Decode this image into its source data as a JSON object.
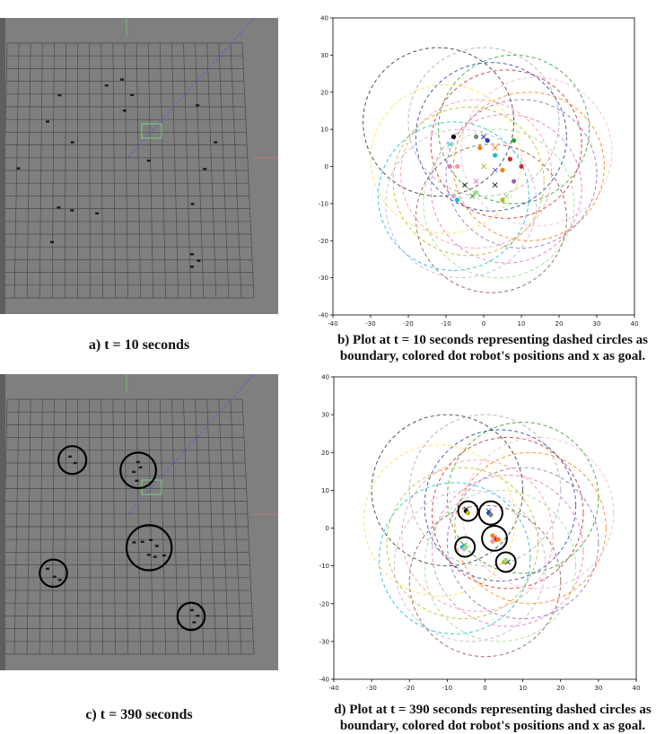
{
  "captions": {
    "a": "a) t = 10 seconds",
    "b_line1": "b) Plot at t = 10 seconds representing dashed circles as",
    "b_line2": "boundary, colored dot robot's positions and x as goal.",
    "c": "c) t = 390 seconds",
    "d_line1": "d) Plot at t = 390 seconds representing dashed circles as",
    "d_line2": "boundary, colored dot robot's positions and x as goal."
  },
  "colors": {
    "sim_background": "#7f7f7f",
    "grid_line": "#4a4a4a",
    "diagonal_line": "#5b5bd6",
    "highlight_box": "#7fd07f"
  },
  "chart_data": [
    {
      "id": "b",
      "type": "scatter",
      "title": "",
      "xlabel": "",
      "ylabel": "",
      "xlim": [
        -40,
        40
      ],
      "ylim": [
        -40,
        40
      ],
      "xticks": [
        -40,
        -30,
        -20,
        -10,
        0,
        10,
        20,
        30,
        40
      ],
      "yticks": [
        -40,
        -30,
        -20,
        -10,
        0,
        10,
        20,
        30,
        40
      ],
      "grid": false,
      "boundary_circles": [
        {
          "cx": -12,
          "cy": 12,
          "r": 20,
          "color": "#333333"
        },
        {
          "cx": 8,
          "cy": 10,
          "r": 20,
          "color": "#2ca02c"
        },
        {
          "cx": 6,
          "cy": 6,
          "r": 20,
          "color": "#d62728"
        },
        {
          "cx": 2,
          "cy": 8,
          "r": 20,
          "color": "#1f3fb4"
        },
        {
          "cx": 0,
          "cy": 12,
          "r": 20,
          "color": "#aaaaaa"
        },
        {
          "cx": -8,
          "cy": -8,
          "r": 20,
          "color": "#17becf"
        },
        {
          "cx": 6,
          "cy": -6,
          "r": 20,
          "color": "#e377c2"
        },
        {
          "cx": -4,
          "cy": -4,
          "r": 20,
          "color": "#bcbd22"
        },
        {
          "cx": 12,
          "cy": 0,
          "r": 20,
          "color": "#ff7f0e"
        },
        {
          "cx": 10,
          "cy": -2,
          "r": 20,
          "color": "#9467bd"
        },
        {
          "cx": -10,
          "cy": 2,
          "r": 20,
          "color": "#ffdd55"
        },
        {
          "cx": 4,
          "cy": -10,
          "r": 20,
          "color": "#98df8a"
        },
        {
          "cx": -2,
          "cy": -2,
          "r": 20,
          "color": "#ff9896"
        },
        {
          "cx": -6,
          "cy": -10,
          "r": 20,
          "color": "#c5b0d5"
        },
        {
          "cx": 14,
          "cy": 4,
          "r": 20,
          "color": "#f7b6d2"
        },
        {
          "cx": 2,
          "cy": -14,
          "r": 20,
          "color": "#8c564b"
        }
      ],
      "robots": [
        {
          "x": -8,
          "y": 8,
          "color": "#000000"
        },
        {
          "x": -2,
          "y": 8,
          "color": "#7f7f7f"
        },
        {
          "x": 1,
          "y": 7,
          "color": "#1f3fb4"
        },
        {
          "x": 8,
          "y": 7,
          "color": "#2ca02c"
        },
        {
          "x": -1,
          "y": 5,
          "color": "#ff7f0e"
        },
        {
          "x": 3,
          "y": 3,
          "color": "#17becf"
        },
        {
          "x": 7,
          "y": 2,
          "color": "#d62728"
        },
        {
          "x": 10,
          "y": 0,
          "color": "#d62728"
        },
        {
          "x": -9,
          "y": 0,
          "color": "#e377c2"
        },
        {
          "x": -7,
          "y": 0,
          "color": "#ff9896"
        },
        {
          "x": 5,
          "y": -1,
          "color": "#ff7f0e"
        },
        {
          "x": 8,
          "y": -4,
          "color": "#9467bd"
        },
        {
          "x": -8,
          "y": -8,
          "color": "#c5b0d5"
        },
        {
          "x": -7,
          "y": -9,
          "color": "#17becf"
        },
        {
          "x": 5,
          "y": -9,
          "color": "#bcbd22"
        },
        {
          "x": -2,
          "y": -7,
          "color": "#98df8a"
        }
      ],
      "goals": [
        {
          "x": -9,
          "y": 6,
          "color": "#17becf"
        },
        {
          "x": 0,
          "y": 8,
          "color": "#1f3fb4"
        },
        {
          "x": 3,
          "y": 5,
          "color": "#ff7f0e"
        },
        {
          "x": 0,
          "y": 0,
          "color": "#bcbd22"
        },
        {
          "x": 3,
          "y": -1,
          "color": "#9467bd"
        },
        {
          "x": -5,
          "y": -5,
          "color": "#333333"
        },
        {
          "x": 3,
          "y": -5,
          "color": "#333333"
        },
        {
          "x": -2,
          "y": -4,
          "color": "#e377c2"
        },
        {
          "x": -3,
          "y": -8,
          "color": "#2ca02c"
        },
        {
          "x": 6,
          "y": -8,
          "color": "#98df8a"
        }
      ]
    },
    {
      "id": "d",
      "type": "scatter",
      "title": "",
      "xlabel": "",
      "ylabel": "",
      "xlim": [
        -40,
        40
      ],
      "ylim": [
        -40,
        40
      ],
      "xticks": [
        -40,
        -30,
        -20,
        -10,
        0,
        10,
        20,
        30,
        40
      ],
      "yticks": [
        -40,
        -30,
        -20,
        -10,
        0,
        10,
        20,
        30,
        40
      ],
      "grid": false,
      "boundary_circles": [
        {
          "cx": -10,
          "cy": 10,
          "r": 20,
          "color": "#333333"
        },
        {
          "cx": 10,
          "cy": 8,
          "r": 20,
          "color": "#2ca02c"
        },
        {
          "cx": 6,
          "cy": 4,
          "r": 20,
          "color": "#d62728"
        },
        {
          "cx": 4,
          "cy": 6,
          "r": 20,
          "color": "#1f3fb4"
        },
        {
          "cx": 0,
          "cy": 10,
          "r": 20,
          "color": "#aaaaaa"
        },
        {
          "cx": -8,
          "cy": -8,
          "r": 20,
          "color": "#17becf"
        },
        {
          "cx": 6,
          "cy": -6,
          "r": 20,
          "color": "#e377c2"
        },
        {
          "cx": -6,
          "cy": -4,
          "r": 20,
          "color": "#bcbd22"
        },
        {
          "cx": 12,
          "cy": 0,
          "r": 20,
          "color": "#ff7f0e"
        },
        {
          "cx": 10,
          "cy": -4,
          "r": 20,
          "color": "#9467bd"
        },
        {
          "cx": -12,
          "cy": 2,
          "r": 20,
          "color": "#ffdd55"
        },
        {
          "cx": 4,
          "cy": -10,
          "r": 20,
          "color": "#98df8a"
        },
        {
          "cx": -2,
          "cy": -2,
          "r": 20,
          "color": "#ff9896"
        },
        {
          "cx": -4,
          "cy": -10,
          "r": 20,
          "color": "#c5b0d5"
        },
        {
          "cx": 14,
          "cy": 4,
          "r": 20,
          "color": "#f7b6d2"
        },
        {
          "cx": 0,
          "cy": -14,
          "r": 20,
          "color": "#8c564b"
        }
      ],
      "robots": [
        {
          "x": -5,
          "y": 4.5,
          "color": "#000000"
        },
        {
          "x": -4.5,
          "y": 4,
          "color": "#bcbd22"
        },
        {
          "x": 1,
          "y": 4,
          "color": "#1f3fb4"
        },
        {
          "x": 1.5,
          "y": 3.5,
          "color": "#7f7f7f"
        },
        {
          "x": 2,
          "y": -2,
          "color": "#ff7f0e"
        },
        {
          "x": 3,
          "y": -3,
          "color": "#d62728"
        },
        {
          "x": 2,
          "y": -3.5,
          "color": "#ff9896"
        },
        {
          "x": 3.5,
          "y": -3,
          "color": "#ff7f0e"
        },
        {
          "x": -6,
          "y": -5,
          "color": "#17becf"
        },
        {
          "x": -5.5,
          "y": -5.5,
          "color": "#c5b0d5"
        },
        {
          "x": -5,
          "y": -5,
          "color": "#98df8a"
        },
        {
          "x": 5,
          "y": -9,
          "color": "#bcbd22"
        },
        {
          "x": 5.5,
          "y": -8.5,
          "color": "#98df8a"
        }
      ],
      "goals": [
        {
          "x": -5,
          "y": 5,
          "color": "#333333"
        },
        {
          "x": 1,
          "y": 4.5,
          "color": "#1f3fb4"
        },
        {
          "x": 2.5,
          "y": -2.5,
          "color": "#9467bd"
        },
        {
          "x": -5.5,
          "y": -4.5,
          "color": "#2ca02c"
        },
        {
          "x": 6,
          "y": -9,
          "color": "#333333"
        }
      ],
      "cluster_circles": [
        {
          "cx": -4.5,
          "cy": 4.5,
          "r": 2.6
        },
        {
          "cx": 1.5,
          "cy": 4,
          "r": 3.1
        },
        {
          "cx": 2.5,
          "cy": -2.7,
          "r": 3.3
        },
        {
          "cx": -5.3,
          "cy": -5,
          "r": 2.6
        },
        {
          "cx": 5.5,
          "cy": -9,
          "r": 2.6
        }
      ]
    }
  ],
  "sim_scenes": [
    {
      "id": "a",
      "robots": [
        [
          0.214,
          0.261
        ],
        [
          0.383,
          0.228
        ],
        [
          0.439,
          0.208
        ],
        [
          0.475,
          0.26
        ],
        [
          0.448,
          0.313
        ],
        [
          0.71,
          0.295
        ],
        [
          0.171,
          0.35
        ],
        [
          0.26,
          0.42
        ],
        [
          0.775,
          0.42
        ],
        [
          0.535,
          0.482
        ],
        [
          0.736,
          0.51
        ],
        [
          0.066,
          0.508
        ],
        [
          0.692,
          0.628
        ],
        [
          0.211,
          0.64
        ],
        [
          0.259,
          0.65
        ],
        [
          0.349,
          0.66
        ],
        [
          0.187,
          0.757
        ],
        [
          0.69,
          0.798
        ],
        [
          0.714,
          0.82
        ],
        [
          0.69,
          0.84
        ]
      ]
    },
    {
      "id": "c",
      "robots": [
        [
          0.252,
          0.278
        ],
        [
          0.27,
          0.3
        ],
        [
          0.496,
          0.297
        ],
        [
          0.505,
          0.315
        ],
        [
          0.481,
          0.33
        ],
        [
          0.492,
          0.36
        ],
        [
          0.482,
          0.568
        ],
        [
          0.512,
          0.566
        ],
        [
          0.542,
          0.56
        ],
        [
          0.564,
          0.58
        ],
        [
          0.535,
          0.61
        ],
        [
          0.557,
          0.617
        ],
        [
          0.59,
          0.612
        ],
        [
          0.171,
          0.657
        ],
        [
          0.196,
          0.684
        ],
        [
          0.215,
          0.695
        ],
        [
          0.69,
          0.797
        ],
        [
          0.711,
          0.816
        ],
        [
          0.698,
          0.838
        ]
      ],
      "cluster_circles": [
        [
          0.26,
          0.29,
          0.05
        ],
        [
          0.497,
          0.325,
          0.064
        ],
        [
          0.536,
          0.586,
          0.081
        ],
        [
          0.192,
          0.672,
          0.049
        ],
        [
          0.687,
          0.818,
          0.049
        ]
      ]
    }
  ]
}
